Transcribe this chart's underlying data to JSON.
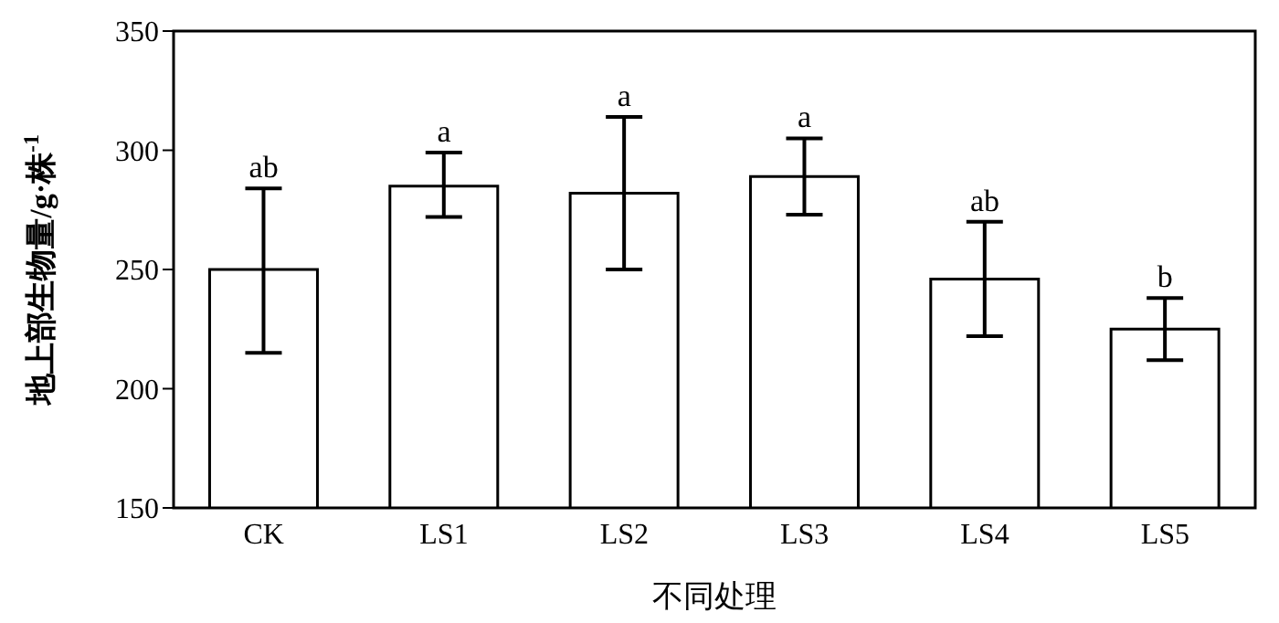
{
  "chart_data": {
    "type": "bar",
    "ylabel": "地上部生物量/g·株$^{-1}$",
    "xlabel": "不同处理",
    "categories": [
      "CK",
      "LS1",
      "LS2",
      "LS3",
      "LS4",
      "LS5"
    ],
    "values": [
      250,
      285,
      282,
      289,
      246,
      225
    ],
    "errors": [
      [
        215,
        284
      ],
      [
        272,
        299
      ],
      [
        250,
        314
      ],
      [
        273,
        305
      ],
      [
        222,
        270
      ],
      [
        212,
        238
      ]
    ],
    "color": "#ffffff",
    "ylim": [
      150,
      350
    ],
    "yticks": [
      150,
      200,
      250,
      300,
      350
    ],
    "grid": false,
    "annotations": [
      {
        "text": "ab",
        "x": "CK",
        "y": 284
      },
      {
        "text": "a",
        "x": "LS1",
        "y": 299
      },
      {
        "text": "a",
        "x": "LS2",
        "y": 314
      },
      {
        "text": "a",
        "x": "LS3",
        "y": 305
      },
      {
        "text": "ab",
        "x": "LS4",
        "y": 270
      },
      {
        "text": "b",
        "x": "LS5",
        "y": 238
      }
    ]
  }
}
